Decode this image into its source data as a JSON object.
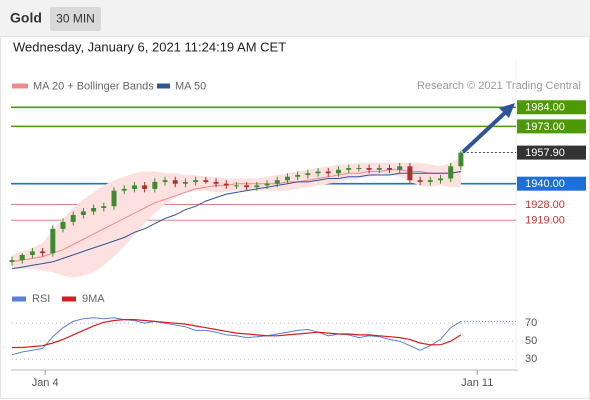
{
  "header": {
    "title": "Gold",
    "timeframe": "30 MIN",
    "timestamp": "Wednesday, January 6, 2021 11:24:19 AM CET"
  },
  "chart_data": [
    {
      "type": "candlestick",
      "source": "Research © 2021 Trading Central",
      "x": [
        0,
        1,
        2,
        3,
        4,
        5,
        6,
        7,
        8,
        9,
        10,
        11,
        12,
        13,
        14,
        15,
        16,
        17,
        18,
        19,
        20,
        21,
        22,
        23,
        24,
        25,
        26,
        27,
        28,
        29,
        30,
        31,
        32,
        33,
        34,
        35,
        36,
        37,
        38,
        39,
        40,
        41,
        42,
        43,
        44
      ],
      "open": [
        1895,
        1896,
        1899,
        1901,
        1900,
        1914,
        1918,
        1922,
        1924,
        1926,
        1927,
        1936,
        1937,
        1939,
        1937,
        1941,
        1942,
        1940,
        1941,
        1942,
        1941,
        1940,
        1939,
        1939,
        1938,
        1939,
        1940,
        1942,
        1944,
        1945,
        1946,
        1947,
        1946,
        1948,
        1949,
        1949,
        1948,
        1949,
        1948,
        1950,
        1942,
        1941,
        1942,
        1943,
        1950
      ],
      "high": [
        1898,
        1900,
        1903,
        1903,
        1916,
        1920,
        1924,
        1926,
        1928,
        1929,
        1938,
        1939,
        1941,
        1941,
        1943,
        1944,
        1944,
        1943,
        1944,
        1944,
        1943,
        1942,
        1941,
        1941,
        1941,
        1942,
        1944,
        1946,
        1947,
        1948,
        1949,
        1949,
        1950,
        1951,
        1951,
        1951,
        1951,
        1951,
        1952,
        1952,
        1944,
        1944,
        1945,
        1952,
        1959
      ],
      "low": [
        1893,
        1894,
        1897,
        1898,
        1898,
        1912,
        1916,
        1920,
        1922,
        1924,
        1925,
        1934,
        1935,
        1935,
        1935,
        1939,
        1938,
        1938,
        1939,
        1940,
        1938,
        1937,
        1937,
        1936,
        1936,
        1937,
        1938,
        1940,
        1942,
        1943,
        1944,
        1944,
        1944,
        1946,
        1947,
        1946,
        1946,
        1946,
        1946,
        1940,
        1939,
        1939,
        1940,
        1941,
        1948
      ],
      "close": [
        1896,
        1899,
        1901,
        1900,
        1914,
        1918,
        1922,
        1924,
        1926,
        1927,
        1936,
        1937,
        1939,
        1937,
        1941,
        1942,
        1940,
        1941,
        1942,
        1941,
        1940,
        1939,
        1939,
        1938,
        1939,
        1940,
        1942,
        1944,
        1945,
        1946,
        1947,
        1946,
        1948,
        1949,
        1949,
        1948,
        1949,
        1948,
        1950,
        1942,
        1941,
        1942,
        1943,
        1950,
        1957.9
      ],
      "up_color": "#3d8b2e",
      "down_color": "#a8322b",
      "series": [
        {
          "name": "MA 20 + Bollinger Bands",
          "color": "#f08a8a",
          "band_color": "#fde0e0",
          "values": [
            1895,
            1896,
            1897,
            1898,
            1900,
            1902,
            1905,
            1908,
            1911,
            1914,
            1917,
            1920,
            1923,
            1926,
            1929,
            1931,
            1933,
            1935,
            1937,
            1938,
            1939,
            1939,
            1940,
            1940,
            1940,
            1940,
            1940,
            1941,
            1941,
            1942,
            1943,
            1944,
            1945,
            1946,
            1946,
            1947,
            1947,
            1948,
            1948,
            1947,
            1947,
            1946,
            1946,
            1946,
            1947
          ],
          "upper": [
            1899,
            1901,
            1903,
            1906,
            1913,
            1920,
            1926,
            1931,
            1935,
            1939,
            1942,
            1944,
            1946,
            1947,
            1947,
            1946,
            1946,
            1945,
            1945,
            1944,
            1944,
            1943,
            1943,
            1943,
            1943,
            1944,
            1945,
            1946,
            1947,
            1948,
            1949,
            1950,
            1951,
            1951,
            1952,
            1952,
            1952,
            1952,
            1952,
            1952,
            1952,
            1951,
            1950,
            1952,
            1955
          ],
          "lower": [
            1891,
            1891,
            1891,
            1890,
            1889,
            1887,
            1886,
            1887,
            1889,
            1893,
            1898,
            1904,
            1910,
            1917,
            1923,
            1928,
            1932,
            1935,
            1936,
            1936,
            1935,
            1935,
            1936,
            1936,
            1936,
            1936,
            1936,
            1936,
            1937,
            1938,
            1939,
            1940,
            1941,
            1942,
            1943,
            1944,
            1945,
            1945,
            1944,
            1941,
            1939,
            1938,
            1939,
            1938,
            1938
          ]
        },
        {
          "name": "MA 50",
          "color": "#2f5597",
          "values": [
            1891,
            1892,
            1893,
            1894,
            1895,
            1897,
            1899,
            1901,
            1903,
            1905,
            1907,
            1909,
            1912,
            1914,
            1917,
            1920,
            1922,
            1925,
            1927,
            1930,
            1932,
            1934,
            1935,
            1936,
            1937,
            1938,
            1939,
            1940,
            1941,
            1941,
            1942,
            1943,
            1943,
            1944,
            1944,
            1945,
            1945,
            1945,
            1946,
            1946,
            1946,
            1946,
            1946,
            1946,
            1947
          ]
        }
      ],
      "levels": [
        {
          "value": 1984,
          "label": "1984.00",
          "color": "#4e9a06",
          "style": "box"
        },
        {
          "value": 1973,
          "label": "1973.00",
          "color": "#4e9a06",
          "style": "box"
        },
        {
          "value": 1957.9,
          "label": "1957.90",
          "color": "#333333",
          "style": "dotted"
        },
        {
          "value": 1940,
          "label": "1940.00",
          "color": "#1e6fd9",
          "style": "box"
        },
        {
          "value": 1928,
          "label": "1928.00",
          "color": "#d03030",
          "style": "text"
        },
        {
          "value": 1919,
          "label": "1919.00",
          "color": "#d03030",
          "style": "text"
        }
      ],
      "xlim": [
        0,
        49.4
      ],
      "ylim": [
        1888,
        2002
      ]
    },
    {
      "type": "line",
      "x": [
        0,
        1,
        2,
        3,
        4,
        5,
        6,
        7,
        8,
        9,
        10,
        11,
        12,
        13,
        14,
        15,
        16,
        17,
        18,
        19,
        20,
        21,
        22,
        23,
        24,
        25,
        26,
        27,
        28,
        29,
        30,
        31,
        32,
        33,
        34,
        35,
        36,
        37,
        38,
        39,
        40,
        41,
        42,
        43,
        44
      ],
      "series": [
        {
          "name": "RSI",
          "color": "#5b7fd6",
          "values": [
            35,
            38,
            40,
            42,
            55,
            65,
            72,
            75,
            76,
            75,
            76,
            74,
            73,
            70,
            72,
            70,
            68,
            66,
            62,
            62,
            60,
            57,
            56,
            54,
            55,
            56,
            58,
            60,
            62,
            63,
            60,
            56,
            58,
            57,
            54,
            56,
            55,
            52,
            50,
            45,
            40,
            45,
            52,
            65,
            72
          ]
        },
        {
          "name": "9MA",
          "color": "#d02020",
          "values": [
            43,
            43,
            44,
            45,
            48,
            52,
            57,
            62,
            67,
            71,
            73,
            74,
            74,
            73,
            72,
            71,
            70,
            69,
            67,
            65,
            63,
            61,
            59,
            58,
            57,
            56,
            56,
            57,
            58,
            59,
            60,
            59,
            58,
            58,
            57,
            57,
            56,
            55,
            54,
            52,
            48,
            46,
            46,
            50,
            57
          ]
        }
      ],
      "xlim": [
        0,
        49.4
      ],
      "xticks": [
        {
          "value": 3.25,
          "label": "Jan 4"
        },
        {
          "value": 45.6,
          "label": "Jan 11"
        }
      ],
      "ylim": [
        18,
        84
      ],
      "yticks": [
        30,
        50,
        70
      ]
    }
  ]
}
